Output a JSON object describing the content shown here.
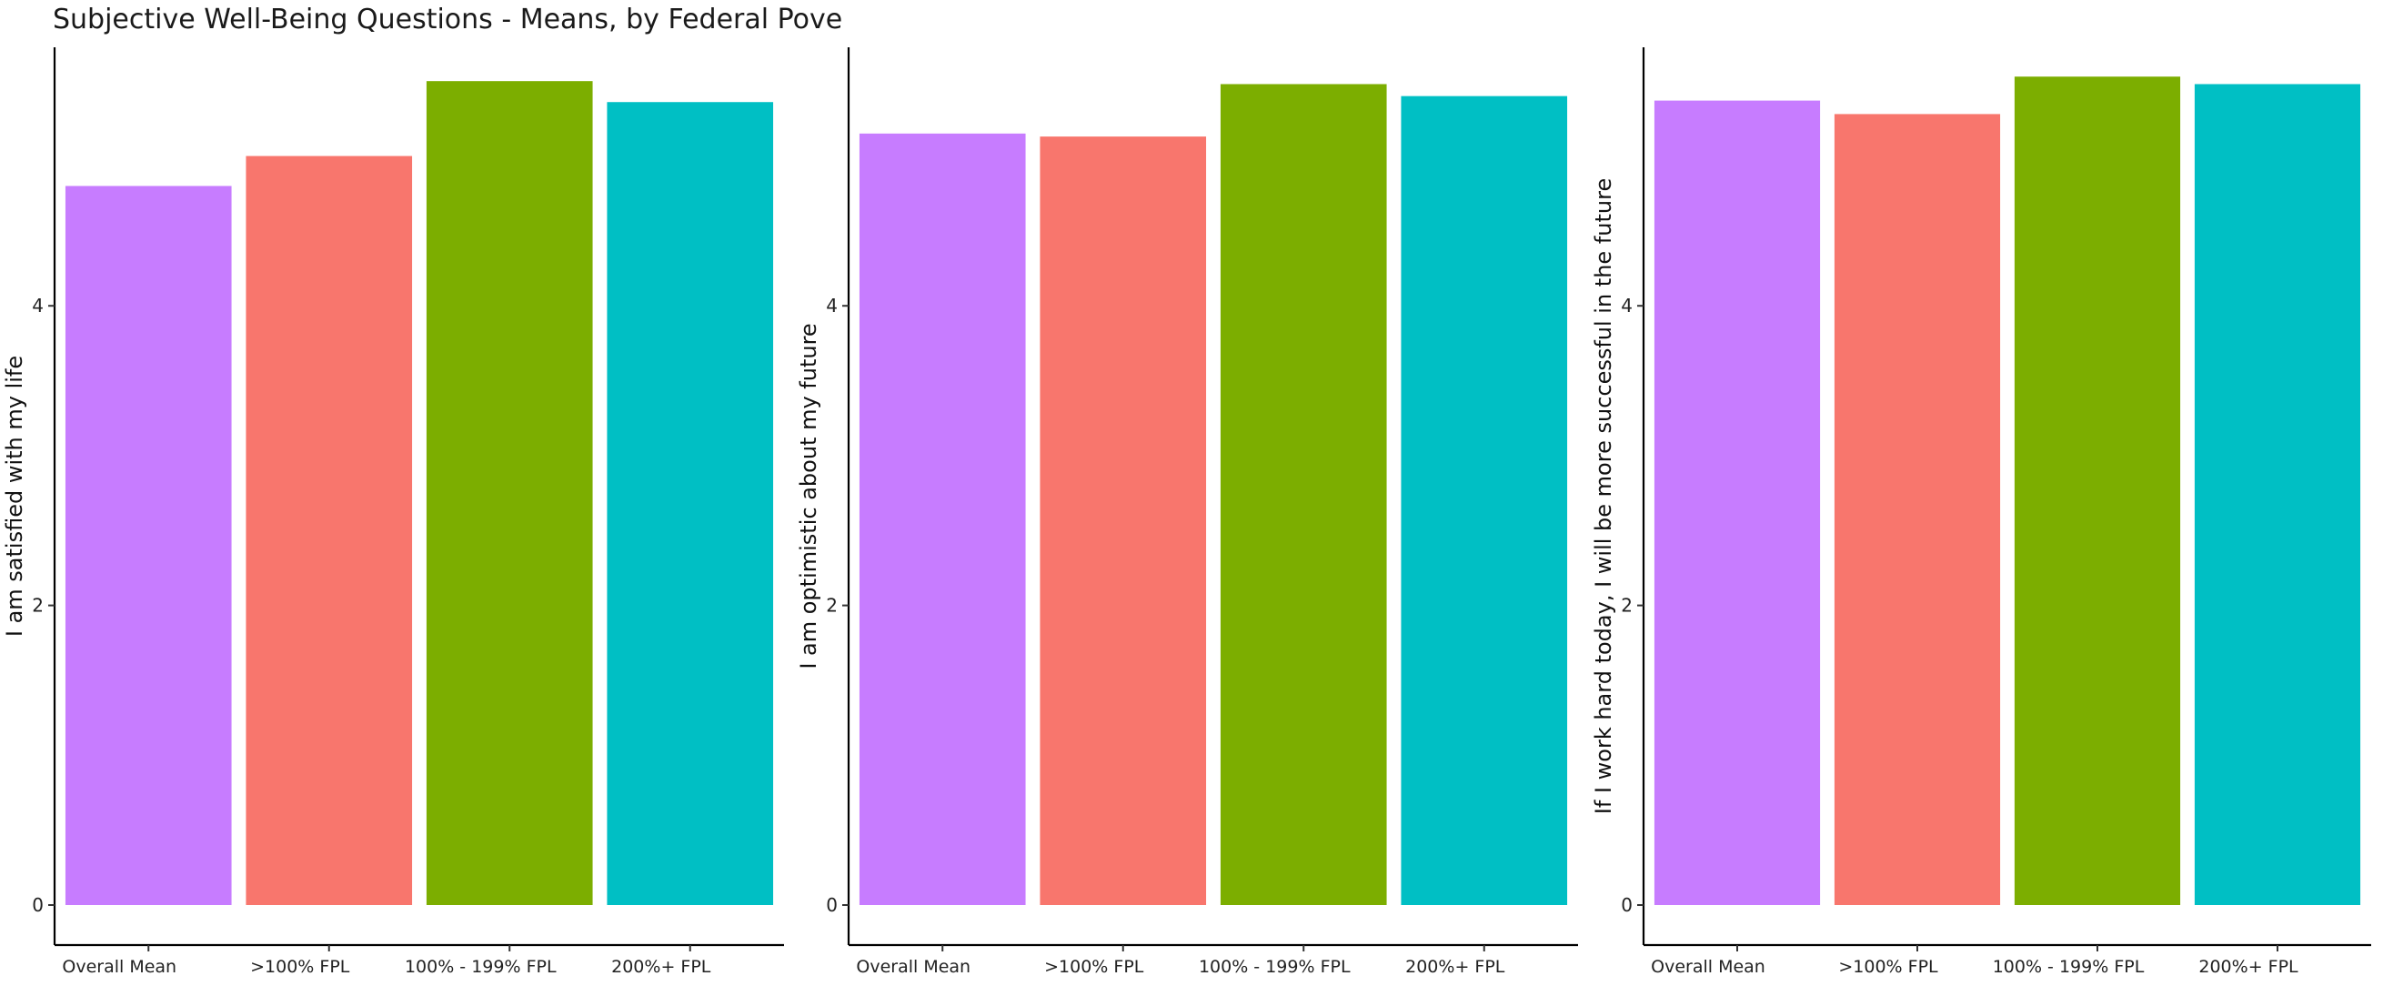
{
  "title": "Subjective Well-Being Questions - Means, by Federal Pove",
  "chart_data": [
    {
      "type": "bar",
      "categories": [
        "Overall Mean",
        ">100% FPL",
        "100% - 199% FPL",
        "200%+ FPL"
      ],
      "values": [
        4.8,
        5.0,
        5.5,
        5.36
      ],
      "ylabel": "I am satisfied with my life",
      "xlabel": "",
      "ylim": [
        0,
        5.75
      ],
      "yticks": [
        0,
        2,
        4
      ],
      "colors": [
        "#C77CFF",
        "#F8766D",
        "#7CAE00",
        "#00BFC4"
      ],
      "grid": false,
      "legend": "none"
    },
    {
      "type": "bar",
      "categories": [
        "Overall Mean",
        ">100% FPL",
        "100% - 199% FPL",
        "200%+ FPL"
      ],
      "values": [
        5.15,
        5.13,
        5.48,
        5.4
      ],
      "ylabel": "I am optimistic about my future",
      "xlabel": "",
      "ylim": [
        0,
        5.75
      ],
      "yticks": [
        0,
        2,
        4
      ],
      "colors": [
        "#C77CFF",
        "#F8766D",
        "#7CAE00",
        "#00BFC4"
      ],
      "grid": false,
      "legend": "none"
    },
    {
      "type": "bar",
      "categories": [
        "Overall Mean",
        ">100% FPL",
        "100% - 199% FPL",
        "200%+ FPL"
      ],
      "values": [
        5.37,
        5.28,
        5.53,
        5.48
      ],
      "ylabel": "If I work hard today, I will be more successful in the future",
      "xlabel": "",
      "ylim": [
        0,
        5.75
      ],
      "yticks": [
        0,
        2,
        4
      ],
      "colors": [
        "#C77CFF",
        "#F8766D",
        "#7CAE00",
        "#00BFC4"
      ],
      "grid": false,
      "legend": "none"
    }
  ]
}
